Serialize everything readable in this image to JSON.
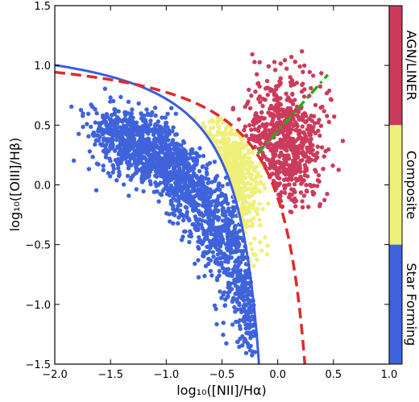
{
  "chart_data": {
    "type": "scatter",
    "title": "",
    "xlabel": "log₁₀([NII]/Hα)",
    "ylabel": "log₁₀([OIII]/Hβ)",
    "xlim": [
      -2.0,
      1.0
    ],
    "ylim": [
      -1.5,
      1.5
    ],
    "xticks": [
      -2.0,
      -1.5,
      -1.0,
      -0.5,
      0.0,
      0.5,
      1.0
    ],
    "yticks": [
      -1.5,
      -1.0,
      -0.5,
      0.0,
      0.5,
      1.0,
      1.5
    ],
    "xtick_labels": [
      "−2.0",
      "−1.5",
      "−1.0",
      "−0.5",
      "0.0",
      "0.5",
      "1.0"
    ],
    "ytick_labels": [
      "−1.5",
      "−1.0",
      "−0.5",
      "0.0",
      "0.5",
      "1.0",
      "1.5"
    ],
    "grid": false,
    "colorbar": {
      "position": "right",
      "bands": [
        {
          "label": "AGN/LINER",
          "color": "#cc3b5c"
        },
        {
          "label": "Composite",
          "color": "#eef07a"
        },
        {
          "label": "Star Forming",
          "color": "#3e63db"
        }
      ]
    },
    "lines": [
      {
        "shape": "solid curve",
        "color": "#3a5de0",
        "formula": "0.61/(x-0.05)+1.3",
        "x": [
          -2.0,
          -0.16
        ]
      },
      {
        "shape": "dashed curve",
        "color": "#e02a2a",
        "formula": "0.61/(x-0.47)+1.19",
        "x": [
          -2.0,
          0.25
        ]
      },
      {
        "shape": "dash-dot line",
        "color": "#2ea81a",
        "formula": "1.05*x+0.45",
        "x": [
          -0.18,
          0.45
        ]
      }
    ],
    "groups": [
      {
        "label": "Star Forming",
        "color": "#3e63db",
        "approx_count": 1800
      },
      {
        "label": "Composite",
        "color": "#eef07a",
        "approx_count": 500
      },
      {
        "label": "AGN/LINER",
        "color": "#cc3b5c",
        "approx_count": 700
      }
    ]
  }
}
